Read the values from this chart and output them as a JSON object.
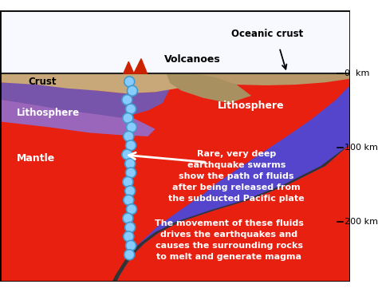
{
  "colors": {
    "mantle_red": "#e82010",
    "lithosphere_blue": "#5544cc",
    "crust_tan": "#c8a878",
    "crust_tan2": "#b89868",
    "dark_gray": "#333333",
    "ocean_white": "#f8f8ff",
    "blue_dot": "#88ccff",
    "blue_dot_edge": "#4499cc",
    "white": "#ffffff",
    "litho_purple": "#7755aa"
  },
  "labels": {
    "crust": "Crust",
    "lithosphere_left": "Lithosphere",
    "lithosphere_right": "Lithosphere",
    "mantle": "Mantle",
    "volcanoes": "Volcanoes",
    "oceanic_crust": "Oceanic crust",
    "rare_text": "Rare, very deep\nearthquake swarms\nshow the path of fluids\nafter being released from\nthe subducted Pacific plate",
    "movement_text": "The movement of these fluids\ndrives the earthquakes and\ncauses the surrounding rocks\nto melt and generate magma",
    "km0": "0  km",
    "km100": "100 km",
    "km200": "200 km"
  }
}
